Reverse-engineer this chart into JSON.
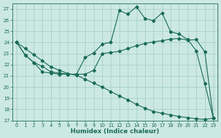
{
  "xlabel": "Humidex (Indice chaleur)",
  "xlim": [
    -0.5,
    23.5
  ],
  "ylim": [
    17,
    27.5
  ],
  "yticks": [
    17,
    18,
    19,
    20,
    21,
    22,
    23,
    24,
    25,
    26,
    27
  ],
  "xticks": [
    0,
    1,
    2,
    3,
    4,
    5,
    6,
    7,
    8,
    9,
    10,
    11,
    12,
    13,
    14,
    15,
    16,
    17,
    18,
    19,
    20,
    21,
    22,
    23
  ],
  "bg_color": "#cce8e2",
  "grid_color": "#9eccc4",
  "line_color": "#1a6b58",
  "curve_jagged_x": [
    0,
    1,
    2,
    3,
    4,
    5,
    6,
    7,
    8,
    9,
    10,
    11,
    12,
    13,
    14,
    15,
    16,
    17,
    18,
    19,
    20,
    21,
    22,
    23
  ],
  "curve_jagged_y": [
    24.0,
    22.85,
    22.2,
    21.85,
    21.35,
    21.25,
    21.15,
    21.15,
    22.65,
    23.05,
    23.85,
    24.0,
    26.85,
    26.55,
    27.2,
    26.15,
    25.95,
    26.65,
    24.95,
    24.75,
    24.25,
    23.25,
    20.3,
    17.2
  ],
  "curve_smooth_x": [
    0,
    1,
    2,
    3,
    4,
    5,
    6,
    7,
    8,
    9,
    10,
    11,
    12,
    13,
    14,
    15,
    16,
    17,
    18,
    19,
    20,
    21,
    22,
    23
  ],
  "curve_smooth_y": [
    24.0,
    22.85,
    22.2,
    21.35,
    21.25,
    21.15,
    21.15,
    21.15,
    21.15,
    21.5,
    23.0,
    23.1,
    23.2,
    23.45,
    23.7,
    23.9,
    24.05,
    24.15,
    24.3,
    24.35,
    24.2,
    24.25,
    23.15,
    17.2
  ],
  "curve_diag_x": [
    0,
    1,
    2,
    3,
    4,
    5,
    6,
    7,
    8,
    9,
    10,
    11,
    12,
    13,
    14,
    15,
    16,
    17,
    18,
    19,
    20,
    21,
    22,
    23
  ],
  "curve_diag_y": [
    24.0,
    23.45,
    22.9,
    22.35,
    21.8,
    21.5,
    21.2,
    21.05,
    20.7,
    20.35,
    20.0,
    19.6,
    19.2,
    18.85,
    18.45,
    18.1,
    17.8,
    17.65,
    17.5,
    17.35,
    17.25,
    17.15,
    17.1,
    17.2
  ]
}
